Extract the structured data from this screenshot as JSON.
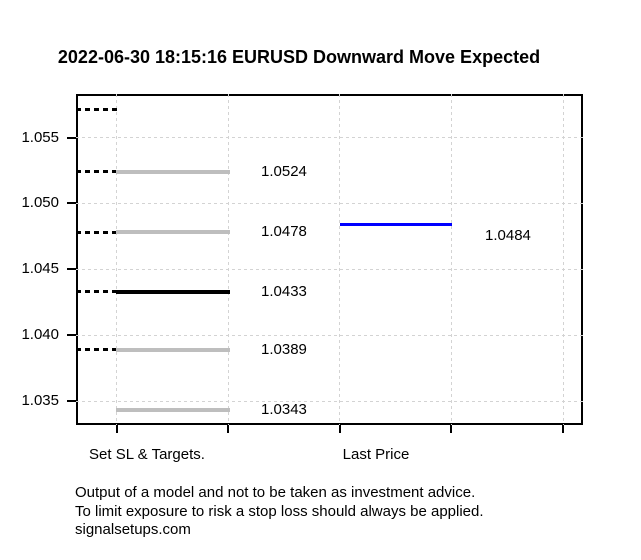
{
  "footer": {
    "lines": [
      "Output of a model and not to be taken as investment advice.",
      "To limit exposure to risk a stop loss should always be applied.",
      "signalsetups.com"
    ]
  },
  "colors": {
    "background": "#FFFFFF",
    "axis": "#000000",
    "grid": "#D3D3D3",
    "target_line": "#BEBEBE",
    "entry_line": "#000000",
    "last_price_line": "#0000FF",
    "text": "#000000"
  },
  "chart_data": {
    "type": "line",
    "title": "2022-06-30 18:15:16 EURUSD Downward Move Expected",
    "x_axis": {
      "labels": [
        "Set SL & Targets.",
        "Last Price"
      ]
    },
    "y_axis": {
      "tick_labels": [
        "1.055",
        "1.050",
        "1.045",
        "1.040",
        "1.035"
      ],
      "tick_values": [
        1.055,
        1.05,
        1.045,
        1.04,
        1.035
      ],
      "range": [
        1.0332,
        1.0583
      ]
    },
    "grid": true,
    "levels": [
      {
        "name": "stop-level",
        "value": 1.0571,
        "label": "",
        "dashed_stub": true,
        "solid_line": false,
        "color": "#000000"
      },
      {
        "name": "target-level-1",
        "value": 1.0524,
        "label": "1.0524",
        "dashed_stub": true,
        "solid_line": true,
        "color": "#BEBEBE"
      },
      {
        "name": "target-level-2",
        "value": 1.0478,
        "label": "1.0478",
        "dashed_stub": true,
        "solid_line": true,
        "color": "#BEBEBE"
      },
      {
        "name": "entry-level",
        "value": 1.0433,
        "label": "1.0433",
        "dashed_stub": true,
        "solid_line": true,
        "color": "#000000"
      },
      {
        "name": "target-level-3",
        "value": 1.0389,
        "label": "1.0389",
        "dashed_stub": true,
        "solid_line": true,
        "color": "#BEBEBE"
      },
      {
        "name": "target-level-4",
        "value": 1.0343,
        "label": "1.0343",
        "dashed_stub": false,
        "solid_line": true,
        "color": "#BEBEBE"
      }
    ],
    "last_price": {
      "value": 1.0484,
      "label": "1.0484",
      "color": "#0000FF"
    }
  }
}
